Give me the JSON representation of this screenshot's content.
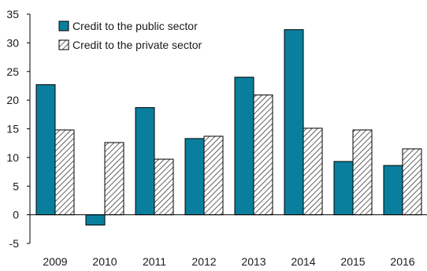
{
  "chart_data": {
    "type": "bar",
    "categories": [
      "2009",
      "2010",
      "2011",
      "2012",
      "2013",
      "2014",
      "2015",
      "2016"
    ],
    "series": [
      {
        "name": "Credit to the public sector",
        "values": [
          22.7,
          -1.8,
          18.7,
          13.3,
          24.0,
          32.3,
          9.3,
          8.6
        ],
        "color": "#0a7f9d",
        "pattern": "solid"
      },
      {
        "name": "Credit to the private sector",
        "values": [
          14.8,
          12.6,
          9.7,
          13.7,
          20.9,
          15.1,
          14.8,
          11.5
        ],
        "color": "#ffffff",
        "pattern": "diagonal-hatch"
      }
    ],
    "ylim": [
      -5,
      35
    ],
    "yticks": [
      "-5",
      "0",
      "5",
      "10",
      "15",
      "20",
      "25",
      "30",
      "35"
    ],
    "title": "",
    "xlabel": "",
    "ylabel": "",
    "grid": false,
    "legend": "top-left"
  }
}
